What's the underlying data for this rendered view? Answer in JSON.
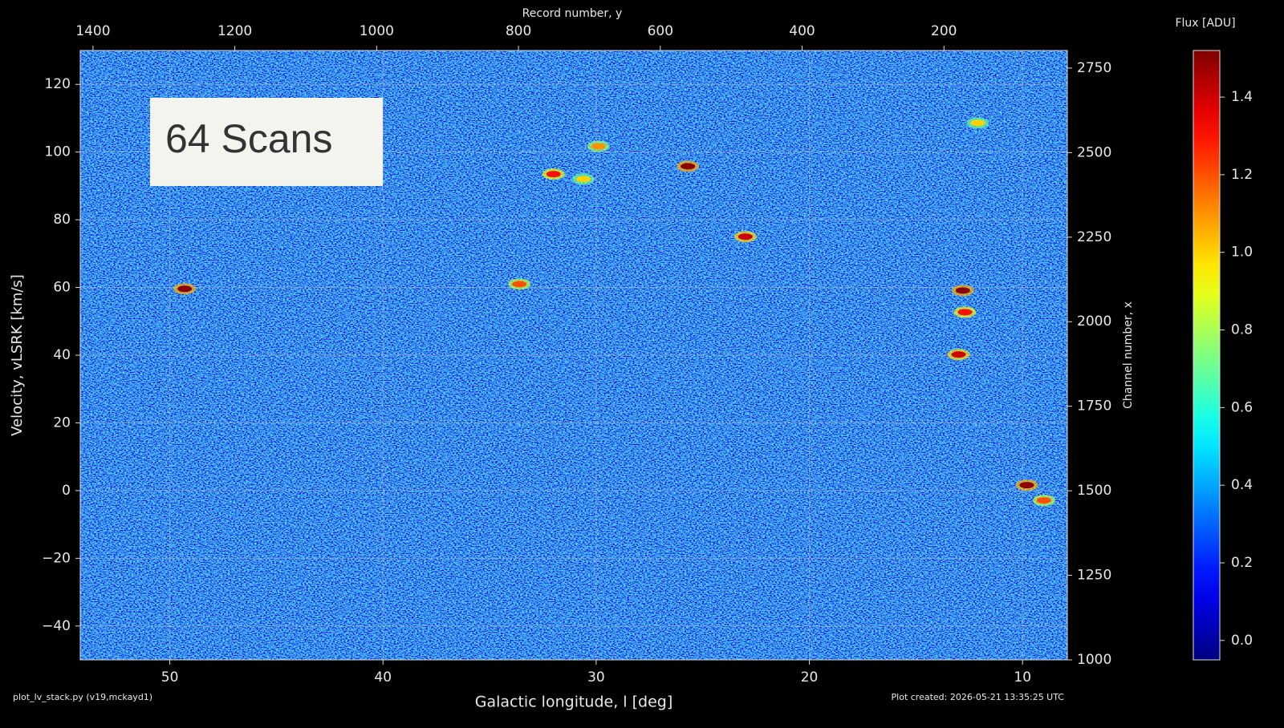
{
  "chart_data": {
    "type": "heatmap",
    "annotation": "64 Scans",
    "xlabel": "Galactic longitude, l [deg]",
    "ylabel": "Velocity, vLSRK [km/s]",
    "x2label": "Record number, y",
    "y2label": "Channel number, x",
    "colorbar_label": "Flux [ADU]",
    "footer_left": "plot_lv_stack.py (v19,mckayd1)",
    "footer_right": "Plot created: 2026-05-21 13:35:25 UTC",
    "colormap": "jet",
    "grid": true,
    "xlim": [
      54.2,
      7.9
    ],
    "xticks": [
      50,
      40,
      30,
      20,
      10
    ],
    "ylim": [
      -50,
      130
    ],
    "yticks": [
      {
        "value": -40,
        "label": "−40"
      },
      {
        "value": -20,
        "label": "−20"
      },
      0,
      20,
      40,
      60,
      80,
      100,
      120
    ],
    "x2lim": [
      1418,
      26
    ],
    "x2ticks": [
      1400,
      1200,
      1000,
      800,
      600,
      400,
      200
    ],
    "y2lim": [
      1000,
      2802
    ],
    "y2ticks": [
      1000,
      1250,
      1500,
      1750,
      2000,
      2250,
      2500,
      2750
    ],
    "clim": [
      -0.05,
      1.52
    ],
    "cticks": [
      {
        "value": 0,
        "label": "0.0"
      },
      0.2,
      0.4,
      0.6,
      0.8,
      {
        "value": 1,
        "label": "1.0"
      },
      1.2,
      1.4
    ],
    "x": [
      49.3,
      33.6,
      32.0,
      30.6,
      29.9,
      25.7,
      23.0,
      12.1,
      12.8,
      12.7,
      13.0,
      9.8,
      9.0
    ],
    "values": [
      59.6,
      61.0,
      93.5,
      92.0,
      101.7,
      95.8,
      75.0,
      108.6,
      59.1,
      52.7,
      40.2,
      1.6,
      -2.9
    ],
    "flux": [
      1.5,
      1.2,
      1.3,
      1.0,
      1.1,
      1.5,
      1.4,
      1.0,
      1.5,
      1.3,
      1.4,
      1.5,
      1.2
    ]
  }
}
